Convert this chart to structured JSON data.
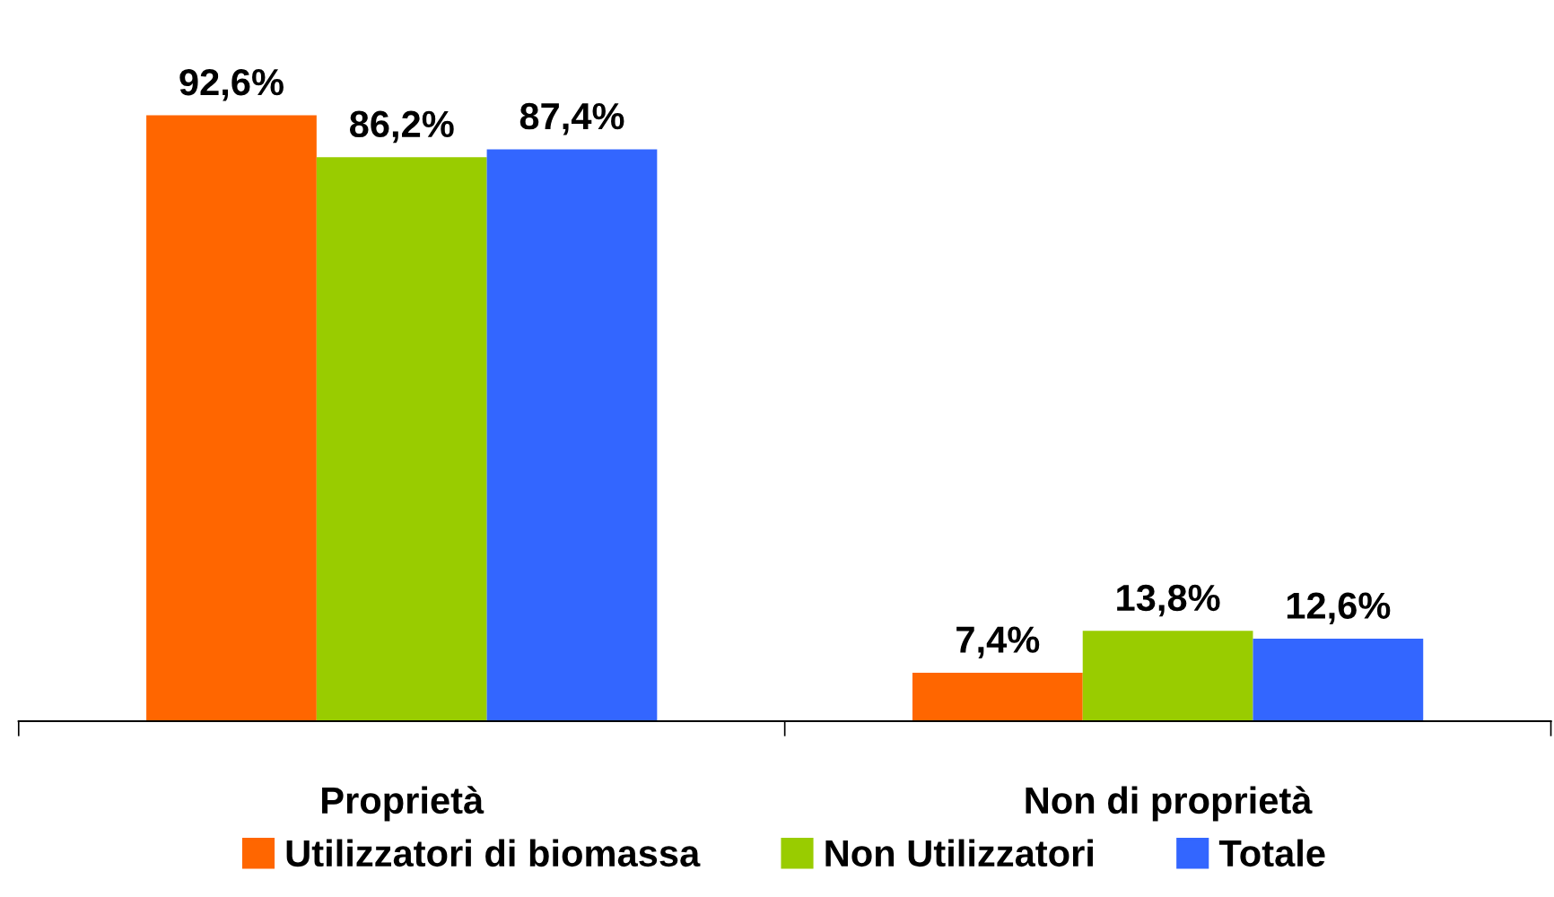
{
  "chart_data": {
    "type": "bar",
    "categories": [
      "Proprietà",
      "Non di proprietà"
    ],
    "series": [
      {
        "name": "Utilizzatori di biomassa",
        "color": "#ff6600",
        "values": [
          92.6,
          7.4
        ],
        "value_labels": [
          "92,6%",
          "7,4%"
        ]
      },
      {
        "name": "Non Utilizzatori",
        "color": "#99cc00",
        "values": [
          86.2,
          13.8
        ],
        "value_labels": [
          "86,2%",
          "13,8%"
        ]
      },
      {
        "name": "Totale",
        "color": "#3366ff",
        "values": [
          87.4,
          12.6
        ],
        "value_labels": [
          "87,4%",
          "12,6%"
        ]
      }
    ],
    "grid": false,
    "legend": "bottom"
  }
}
